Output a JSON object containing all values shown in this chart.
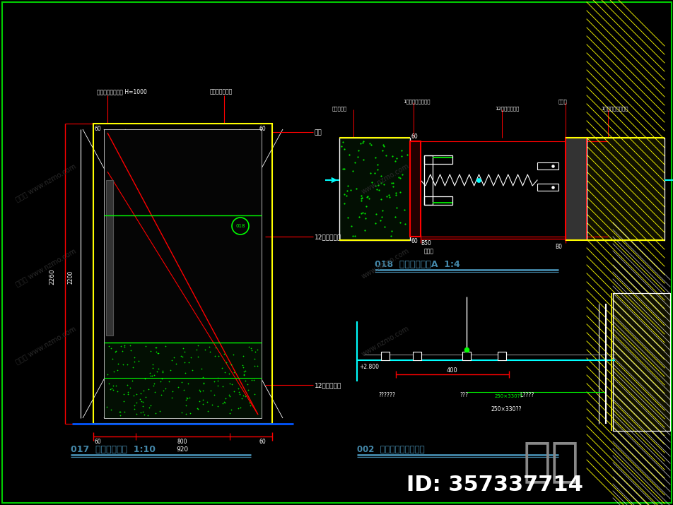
{
  "bg_color": "#000000",
  "border_color": "#00cc00",
  "title1": "017  玻璃门大样图  1:10",
  "title2": "018  玻璃门剖面图A  1:4",
  "title3": "002  二层卫生间顶剖面图",
  "id_text": "ID: 357337714",
  "watermark": "知未",
  "white": "#ffffff",
  "red": "#ff0000",
  "yellow": "#ffff00",
  "cyan": "#00ffff",
  "green": "#00ff00",
  "blue": "#0000ff",
  "gray": "#888888",
  "label_color": "#4488aa",
  "dim_color": "#ff0000",
  "label_white": "#ffffff",
  "hatch_white": "#cccccc"
}
